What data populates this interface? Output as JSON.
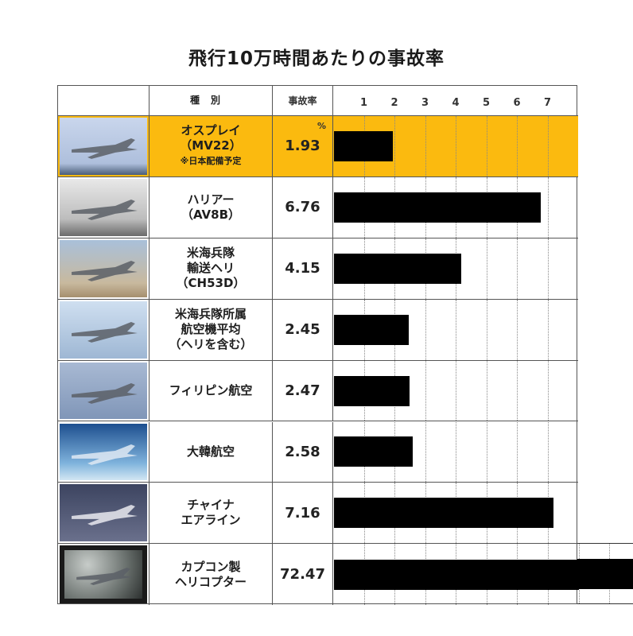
{
  "title": "飛行10万時間あたりの事故率",
  "header": {
    "image_col": "",
    "type_col": "種別",
    "rate_col": "事故率",
    "ticks": [
      "1",
      "2",
      "3",
      "4",
      "5",
      "6",
      "7"
    ]
  },
  "rows": [
    {
      "name": "オスプレイ\n（MV22）",
      "note": "※日本配備予定",
      "rate": "1.93",
      "unit": "%",
      "highlight": true,
      "image": "osprey-tiltrotor-photo"
    },
    {
      "name": "ハリアー\n（AV8B）",
      "rate": "6.76",
      "image": "harrier-jet-photo"
    },
    {
      "name": "米海兵隊\n輸送ヘリ\n（CH53D）",
      "rate": "4.15",
      "image": "ch53d-helicopter-photo"
    },
    {
      "name": "米海兵隊所属\n航空機平均\n（ヘリを含む）",
      "rate": "2.45",
      "image": "fighter-jets-photo"
    },
    {
      "name": "フィリピン航空",
      "rate": "2.47",
      "image": "philippine-airlines-photo"
    },
    {
      "name": "大韓航空",
      "rate": "2.58",
      "image": "korean-air-photo"
    },
    {
      "name": "チャイナ\nエアライン",
      "rate": "7.16",
      "image": "china-airlines-photo"
    },
    {
      "name": "カプコン製\nヘリコプター",
      "rate": "72.47",
      "image": "game-helicopter-screenshot"
    }
  ],
  "colors": {
    "highlight": "#fbba0f",
    "bar": "#000000",
    "border": "#555555"
  },
  "chart_data": {
    "type": "bar",
    "orientation": "horizontal",
    "title": "飛行10万時間あたりの事故率",
    "categories": [
      "オスプレイ（MV22）※日本配備予定",
      "ハリアー（AV8B）",
      "米海兵隊輸送ヘリ（CH53D）",
      "米海兵隊所属航空機平均（ヘリを含む）",
      "フィリピン航空",
      "大韓航空",
      "チャイナエアライン",
      "カプコン製ヘリコプター"
    ],
    "values": [
      1.93,
      6.76,
      4.15,
      2.45,
      2.47,
      2.58,
      7.16,
      72.47
    ],
    "xlabel": "",
    "ylabel": "事故率 (%)",
    "xlim": [
      0,
      8
    ],
    "x_ticks": [
      1,
      2,
      3,
      4,
      5,
      6,
      7
    ],
    "grid": "dotted vertical",
    "legend": "none",
    "annotations": [
      "最後のバーは枠外へはみ出す"
    ]
  }
}
